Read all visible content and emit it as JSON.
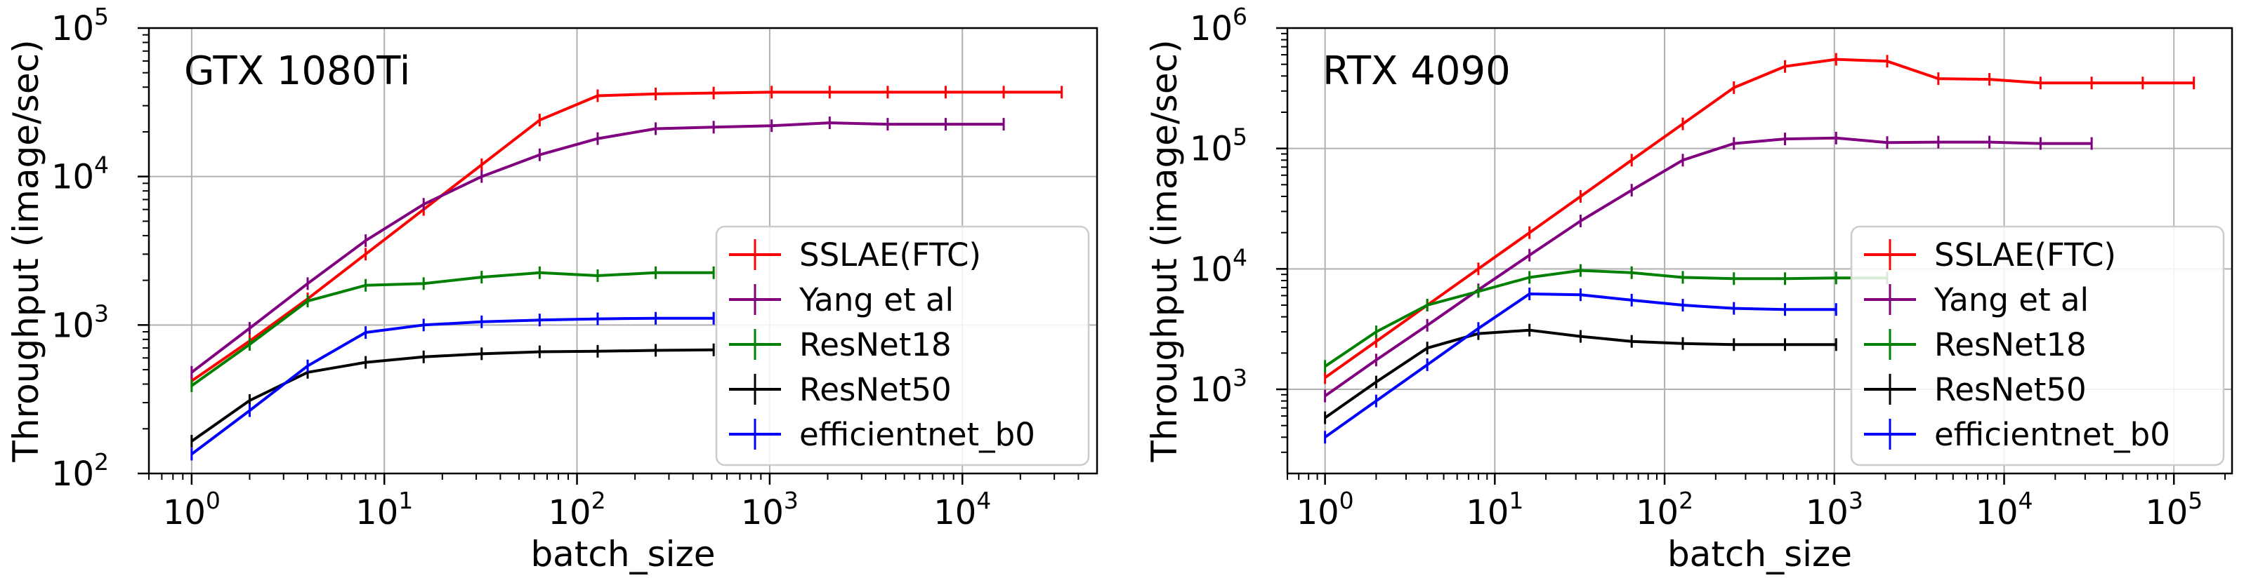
{
  "chart_data": [
    {
      "type": "line",
      "title": "GTX 1080Ti",
      "xlabel": "batch_size",
      "ylabel": "Throughput (image/sec)",
      "x_scale": "log",
      "y_scale": "log",
      "xlim": [
        0.6,
        50000
      ],
      "ylim": [
        100,
        100000
      ],
      "x_ticks": [
        1,
        10,
        100,
        1000,
        10000
      ],
      "y_ticks": [
        100,
        1000,
        10000,
        100000
      ],
      "x_tick_labels": [
        {
          "base": "10",
          "exp": "0"
        },
        {
          "base": "10",
          "exp": "1"
        },
        {
          "base": "10",
          "exp": "2"
        },
        {
          "base": "10",
          "exp": "3"
        },
        {
          "base": "10",
          "exp": "4"
        }
      ],
      "y_tick_labels": [
        {
          "base": "10",
          "exp": "2"
        },
        {
          "base": "10",
          "exp": "3"
        },
        {
          "base": "10",
          "exp": "4"
        },
        {
          "base": "10",
          "exp": "5"
        }
      ],
      "grid": true,
      "legend_position": "lower-right",
      "series": [
        {
          "name": "SSLAE(FTC)",
          "color": "#ff0000",
          "x": [
            1,
            2,
            4,
            8,
            16,
            32,
            64,
            128,
            256,
            512,
            1024,
            2048,
            4096,
            8192,
            16384,
            32768
          ],
          "y": [
            420,
            780,
            1500,
            3000,
            6000,
            12000,
            24000,
            35000,
            36000,
            36500,
            37000,
            37000,
            37000,
            37000,
            37000,
            37000
          ]
        },
        {
          "name": "Yang et al",
          "color": "#800080",
          "x": [
            1,
            2,
            4,
            8,
            16,
            32,
            64,
            128,
            256,
            512,
            1024,
            2048,
            4096,
            8192,
            16384
          ],
          "y": [
            480,
            950,
            1900,
            3700,
            6500,
            10000,
            14000,
            18000,
            21000,
            21500,
            22000,
            23000,
            22500,
            22500,
            22500
          ]
        },
        {
          "name": "ResNet18",
          "color": "#008000",
          "x": [
            1,
            2,
            4,
            8,
            16,
            32,
            64,
            128,
            256,
            512
          ],
          "y": [
            390,
            740,
            1450,
            1850,
            1900,
            2100,
            2250,
            2150,
            2250,
            2250
          ]
        },
        {
          "name": "ResNet50",
          "color": "#000000",
          "x": [
            1,
            2,
            4,
            8,
            16,
            32,
            64,
            128,
            256,
            512
          ],
          "y": [
            165,
            310,
            480,
            560,
            610,
            640,
            660,
            665,
            675,
            680
          ]
        },
        {
          "name": "efficientnet_b0",
          "color": "#0000ff",
          "x": [
            1,
            2,
            4,
            8,
            16,
            32,
            64,
            128,
            256,
            512
          ],
          "y": [
            135,
            265,
            530,
            890,
            1000,
            1050,
            1080,
            1100,
            1110,
            1110
          ]
        }
      ]
    },
    {
      "type": "line",
      "title": "RTX 4090",
      "xlabel": "batch_size",
      "ylabel": "Throughput (image/sec)",
      "x_scale": "log",
      "y_scale": "log",
      "xlim": [
        0.6,
        220000
      ],
      "ylim": [
        200,
        1000000
      ],
      "x_ticks": [
        1,
        10,
        100,
        1000,
        10000,
        100000
      ],
      "y_ticks": [
        1000,
        10000,
        100000,
        1000000
      ],
      "x_tick_labels": [
        {
          "base": "10",
          "exp": "0"
        },
        {
          "base": "10",
          "exp": "1"
        },
        {
          "base": "10",
          "exp": "2"
        },
        {
          "base": "10",
          "exp": "3"
        },
        {
          "base": "10",
          "exp": "4"
        },
        {
          "base": "10",
          "exp": "5"
        }
      ],
      "y_tick_labels": [
        {
          "base": "10",
          "exp": "3"
        },
        {
          "base": "10",
          "exp": "4"
        },
        {
          "base": "10",
          "exp": "5"
        },
        {
          "base": "10",
          "exp": "6"
        }
      ],
      "grid": true,
      "legend_position": "lower-right",
      "series": [
        {
          "name": "SSLAE(FTC)",
          "color": "#ff0000",
          "x": [
            1,
            2,
            4,
            8,
            16,
            32,
            64,
            128,
            256,
            512,
            1024,
            2048,
            4096,
            8192,
            16384,
            32768,
            65536,
            131072
          ],
          "y": [
            1250,
            2500,
            5000,
            10000,
            20000,
            40000,
            80000,
            160000,
            320000,
            480000,
            550000,
            530000,
            380000,
            375000,
            350000,
            350000,
            350000,
            350000
          ]
        },
        {
          "name": "Yang et al",
          "color": "#800080",
          "x": [
            1,
            2,
            4,
            8,
            16,
            32,
            64,
            128,
            256,
            512,
            1024,
            2048,
            4096,
            8192,
            16384,
            32768
          ],
          "y": [
            880,
            1750,
            3400,
            6700,
            13000,
            25000,
            45000,
            80000,
            110000,
            120000,
            122000,
            112000,
            113000,
            113000,
            110000,
            110000
          ]
        },
        {
          "name": "ResNet18",
          "color": "#008000",
          "x": [
            1,
            2,
            4,
            8,
            16,
            32,
            64,
            128,
            256,
            512,
            1024,
            2048
          ],
          "y": [
            1550,
            3000,
            5000,
            6500,
            8500,
            9700,
            9300,
            8500,
            8300,
            8300,
            8400,
            8400
          ]
        },
        {
          "name": "ResNet50",
          "color": "#000000",
          "x": [
            1,
            2,
            4,
            8,
            16,
            32,
            64,
            128,
            256,
            512,
            1024
          ],
          "y": [
            580,
            1150,
            2200,
            2900,
            3100,
            2750,
            2500,
            2400,
            2350,
            2350,
            2350
          ]
        },
        {
          "name": "efficientnet_b0",
          "color": "#0000ff",
          "x": [
            1,
            2,
            4,
            8,
            16,
            32,
            64,
            128,
            256,
            512,
            1024
          ],
          "y": [
            400,
            800,
            1600,
            3200,
            6200,
            6100,
            5500,
            5000,
            4700,
            4600,
            4600
          ]
        }
      ]
    }
  ]
}
